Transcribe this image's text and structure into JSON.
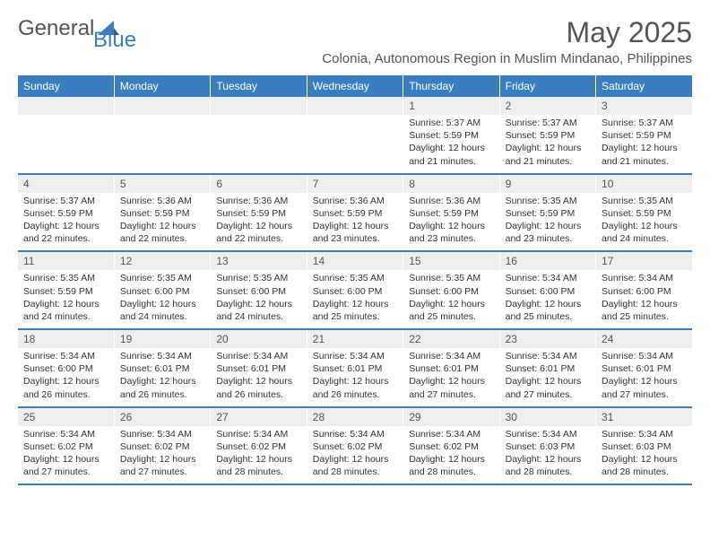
{
  "logo": {
    "general": "General",
    "blue": "Blue"
  },
  "title": "May 2025",
  "subtitle": "Colonia, Autonomous Region in Muslim Mindanao, Philippines",
  "colors": {
    "header_bg": "#3b7ec0",
    "header_text": "#ffffff",
    "daynum_bg": "#eeeeee",
    "border": "#3b7ec0",
    "body_text": "#333333",
    "title_text": "#555555"
  },
  "daynames": [
    "Sunday",
    "Monday",
    "Tuesday",
    "Wednesday",
    "Thursday",
    "Friday",
    "Saturday"
  ],
  "weeks": [
    [
      {
        "num": "",
        "lines": []
      },
      {
        "num": "",
        "lines": []
      },
      {
        "num": "",
        "lines": []
      },
      {
        "num": "",
        "lines": []
      },
      {
        "num": "1",
        "lines": [
          "Sunrise: 5:37 AM",
          "Sunset: 5:59 PM",
          "Daylight: 12 hours",
          "and 21 minutes."
        ]
      },
      {
        "num": "2",
        "lines": [
          "Sunrise: 5:37 AM",
          "Sunset: 5:59 PM",
          "Daylight: 12 hours",
          "and 21 minutes."
        ]
      },
      {
        "num": "3",
        "lines": [
          "Sunrise: 5:37 AM",
          "Sunset: 5:59 PM",
          "Daylight: 12 hours",
          "and 21 minutes."
        ]
      }
    ],
    [
      {
        "num": "4",
        "lines": [
          "Sunrise: 5:37 AM",
          "Sunset: 5:59 PM",
          "Daylight: 12 hours",
          "and 22 minutes."
        ]
      },
      {
        "num": "5",
        "lines": [
          "Sunrise: 5:36 AM",
          "Sunset: 5:59 PM",
          "Daylight: 12 hours",
          "and 22 minutes."
        ]
      },
      {
        "num": "6",
        "lines": [
          "Sunrise: 5:36 AM",
          "Sunset: 5:59 PM",
          "Daylight: 12 hours",
          "and 22 minutes."
        ]
      },
      {
        "num": "7",
        "lines": [
          "Sunrise: 5:36 AM",
          "Sunset: 5:59 PM",
          "Daylight: 12 hours",
          "and 23 minutes."
        ]
      },
      {
        "num": "8",
        "lines": [
          "Sunrise: 5:36 AM",
          "Sunset: 5:59 PM",
          "Daylight: 12 hours",
          "and 23 minutes."
        ]
      },
      {
        "num": "9",
        "lines": [
          "Sunrise: 5:35 AM",
          "Sunset: 5:59 PM",
          "Daylight: 12 hours",
          "and 23 minutes."
        ]
      },
      {
        "num": "10",
        "lines": [
          "Sunrise: 5:35 AM",
          "Sunset: 5:59 PM",
          "Daylight: 12 hours",
          "and 24 minutes."
        ]
      }
    ],
    [
      {
        "num": "11",
        "lines": [
          "Sunrise: 5:35 AM",
          "Sunset: 5:59 PM",
          "Daylight: 12 hours",
          "and 24 minutes."
        ]
      },
      {
        "num": "12",
        "lines": [
          "Sunrise: 5:35 AM",
          "Sunset: 6:00 PM",
          "Daylight: 12 hours",
          "and 24 minutes."
        ]
      },
      {
        "num": "13",
        "lines": [
          "Sunrise: 5:35 AM",
          "Sunset: 6:00 PM",
          "Daylight: 12 hours",
          "and 24 minutes."
        ]
      },
      {
        "num": "14",
        "lines": [
          "Sunrise: 5:35 AM",
          "Sunset: 6:00 PM",
          "Daylight: 12 hours",
          "and 25 minutes."
        ]
      },
      {
        "num": "15",
        "lines": [
          "Sunrise: 5:35 AM",
          "Sunset: 6:00 PM",
          "Daylight: 12 hours",
          "and 25 minutes."
        ]
      },
      {
        "num": "16",
        "lines": [
          "Sunrise: 5:34 AM",
          "Sunset: 6:00 PM",
          "Daylight: 12 hours",
          "and 25 minutes."
        ]
      },
      {
        "num": "17",
        "lines": [
          "Sunrise: 5:34 AM",
          "Sunset: 6:00 PM",
          "Daylight: 12 hours",
          "and 25 minutes."
        ]
      }
    ],
    [
      {
        "num": "18",
        "lines": [
          "Sunrise: 5:34 AM",
          "Sunset: 6:00 PM",
          "Daylight: 12 hours",
          "and 26 minutes."
        ]
      },
      {
        "num": "19",
        "lines": [
          "Sunrise: 5:34 AM",
          "Sunset: 6:01 PM",
          "Daylight: 12 hours",
          "and 26 minutes."
        ]
      },
      {
        "num": "20",
        "lines": [
          "Sunrise: 5:34 AM",
          "Sunset: 6:01 PM",
          "Daylight: 12 hours",
          "and 26 minutes."
        ]
      },
      {
        "num": "21",
        "lines": [
          "Sunrise: 5:34 AM",
          "Sunset: 6:01 PM",
          "Daylight: 12 hours",
          "and 26 minutes."
        ]
      },
      {
        "num": "22",
        "lines": [
          "Sunrise: 5:34 AM",
          "Sunset: 6:01 PM",
          "Daylight: 12 hours",
          "and 27 minutes."
        ]
      },
      {
        "num": "23",
        "lines": [
          "Sunrise: 5:34 AM",
          "Sunset: 6:01 PM",
          "Daylight: 12 hours",
          "and 27 minutes."
        ]
      },
      {
        "num": "24",
        "lines": [
          "Sunrise: 5:34 AM",
          "Sunset: 6:01 PM",
          "Daylight: 12 hours",
          "and 27 minutes."
        ]
      }
    ],
    [
      {
        "num": "25",
        "lines": [
          "Sunrise: 5:34 AM",
          "Sunset: 6:02 PM",
          "Daylight: 12 hours",
          "and 27 minutes."
        ]
      },
      {
        "num": "26",
        "lines": [
          "Sunrise: 5:34 AM",
          "Sunset: 6:02 PM",
          "Daylight: 12 hours",
          "and 27 minutes."
        ]
      },
      {
        "num": "27",
        "lines": [
          "Sunrise: 5:34 AM",
          "Sunset: 6:02 PM",
          "Daylight: 12 hours",
          "and 28 minutes."
        ]
      },
      {
        "num": "28",
        "lines": [
          "Sunrise: 5:34 AM",
          "Sunset: 6:02 PM",
          "Daylight: 12 hours",
          "and 28 minutes."
        ]
      },
      {
        "num": "29",
        "lines": [
          "Sunrise: 5:34 AM",
          "Sunset: 6:02 PM",
          "Daylight: 12 hours",
          "and 28 minutes."
        ]
      },
      {
        "num": "30",
        "lines": [
          "Sunrise: 5:34 AM",
          "Sunset: 6:03 PM",
          "Daylight: 12 hours",
          "and 28 minutes."
        ]
      },
      {
        "num": "31",
        "lines": [
          "Sunrise: 5:34 AM",
          "Sunset: 6:03 PM",
          "Daylight: 12 hours",
          "and 28 minutes."
        ]
      }
    ]
  ]
}
